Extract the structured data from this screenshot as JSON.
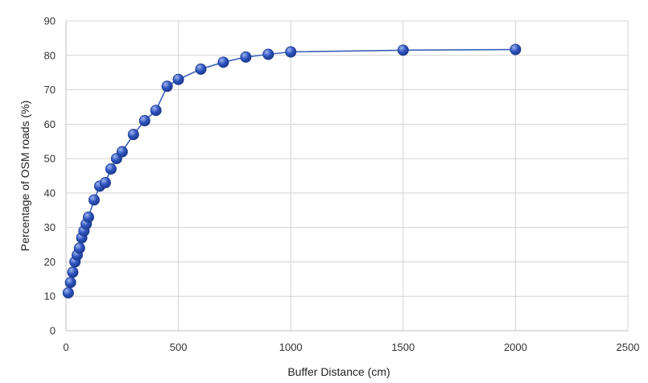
{
  "chart_data": {
    "type": "line",
    "title": "",
    "xlabel": "Buffer Distance  (cm)",
    "ylabel": "Percentage of OSM roads (%)",
    "xlim": [
      0,
      2500
    ],
    "ylim": [
      0,
      90
    ],
    "xticks": [
      0,
      500,
      1000,
      1500,
      2000,
      2500
    ],
    "yticks": [
      0,
      10,
      20,
      30,
      40,
      50,
      60,
      70,
      80,
      90
    ],
    "grid": true,
    "legend": "none",
    "series": [
      {
        "x": [
          10,
          20,
          30,
          40,
          50,
          60,
          70,
          80,
          90,
          100,
          125,
          150,
          175,
          200,
          225,
          250,
          300,
          350,
          400,
          450,
          500,
          600,
          700,
          800,
          900,
          1000,
          1500,
          2000
        ],
        "y": [
          11,
          14,
          17,
          20,
          22,
          24,
          27,
          29,
          31,
          33,
          38,
          42,
          43,
          47,
          50,
          52,
          57,
          61,
          64,
          71,
          73,
          76,
          78,
          79.5,
          80.3,
          81,
          81.5,
          81.7
        ]
      }
    ],
    "colors": {
      "line": "#3a5fb5",
      "marker_fill": "#2f55c0",
      "marker_highlight": "#9fb6ee",
      "marker_edge": "#1c3a8f",
      "grid": "#d4d4d4",
      "axis": "#bfbfbf"
    }
  }
}
